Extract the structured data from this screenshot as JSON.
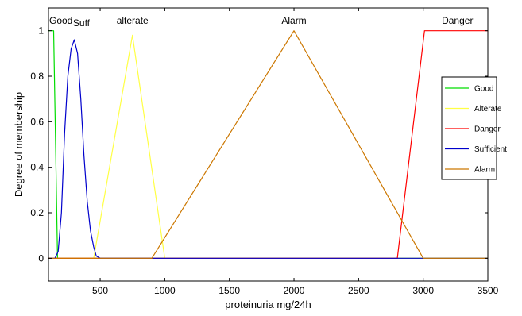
{
  "chart_data": {
    "type": "line",
    "xlabel": "proteinuria mg/24h",
    "ylabel": "Degree of membership",
    "xlim": [
      100,
      3500
    ],
    "ylim": [
      -0.1,
      1.1
    ],
    "x_ticks": [
      500,
      1000,
      1500,
      2000,
      2500,
      3000,
      3500
    ],
    "y_ticks": [
      0,
      0.2,
      0.4,
      0.6,
      0.8,
      1
    ],
    "grid": false,
    "legend_position": "right",
    "series": [
      {
        "name": "Good",
        "color": "#00dd00",
        "label": "Good",
        "label_x": 100,
        "points": [
          [
            100,
            1
          ],
          [
            140,
            1
          ],
          [
            170,
            0
          ],
          [
            3500,
            0
          ]
        ]
      },
      {
        "name": "Alterate",
        "color": "#ffff44",
        "label": "alterate",
        "label_x": 750,
        "points": [
          [
            100,
            0
          ],
          [
            450,
            0
          ],
          [
            750,
            0.98
          ],
          [
            1000,
            0
          ],
          [
            3500,
            0
          ]
        ]
      },
      {
        "name": "Danger",
        "color": "#ff0000",
        "label": "Danger",
        "label_x": 3265,
        "points": [
          [
            100,
            0
          ],
          [
            2800,
            0
          ],
          [
            3010,
            1
          ],
          [
            3500,
            1
          ]
        ]
      },
      {
        "name": "Sufficient",
        "color": "#0000cc",
        "label": "Suff",
        "label_x": 355,
        "points": [
          [
            100,
            0
          ],
          [
            150,
            0
          ],
          [
            175,
            0.03
          ],
          [
            200,
            0.2
          ],
          [
            225,
            0.55
          ],
          [
            250,
            0.8
          ],
          [
            275,
            0.92
          ],
          [
            300,
            0.96
          ],
          [
            325,
            0.9
          ],
          [
            350,
            0.7
          ],
          [
            375,
            0.45
          ],
          [
            400,
            0.25
          ],
          [
            425,
            0.12
          ],
          [
            450,
            0.05
          ],
          [
            470,
            0.01
          ],
          [
            500,
            0
          ],
          [
            3500,
            0
          ]
        ]
      },
      {
        "name": "Alarm",
        "color": "#cc7700",
        "label": "Alarm",
        "label_x": 2000,
        "points": [
          [
            100,
            0
          ],
          [
            900,
            0
          ],
          [
            2000,
            1
          ],
          [
            3000,
            0
          ],
          [
            3500,
            0
          ]
        ]
      }
    ]
  }
}
